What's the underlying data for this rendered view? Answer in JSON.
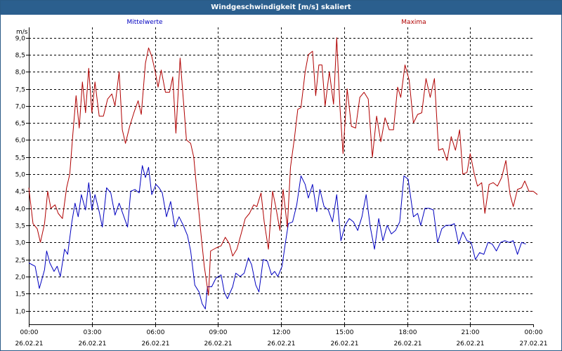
{
  "window": {
    "title": "Windgeschwindigkeit [m/s] skaliert"
  },
  "chart_data": {
    "type": "line",
    "title": "Windgeschwindigkeit [m/s] skaliert",
    "ylabel": "m/s",
    "ylim": [
      0.6,
      9.3
    ],
    "xlim": [
      0,
      24
    ],
    "grid": true,
    "y_ticks": [
      "1,0",
      "1,5",
      "2,0",
      "2,5",
      "3,0",
      "3,5",
      "4,0",
      "4,5",
      "5,0",
      "5,5",
      "6,0",
      "6,5",
      "7,0",
      "7,5",
      "8,0",
      "8,5",
      "9,0"
    ],
    "x_ticks": [
      {
        "time": "00:00",
        "date": "26.02.21"
      },
      {
        "time": "03:00",
        "date": "26.02.21"
      },
      {
        "time": "06:00",
        "date": "26.02.21"
      },
      {
        "time": "09:00",
        "date": "26.02.21"
      },
      {
        "time": "12:00",
        "date": "26.02.21"
      },
      {
        "time": "15:00",
        "date": "26.02.21"
      },
      {
        "time": "18:00",
        "date": "26.02.21"
      },
      {
        "time": "21:00",
        "date": "26.02.21"
      },
      {
        "time": "00:00",
        "date": "27.02.21"
      }
    ],
    "series": [
      {
        "name": "Mittelwerte",
        "color": "#0000c0",
        "points": [
          [
            0.0,
            2.4
          ],
          [
            0.3,
            2.3
          ],
          [
            0.5,
            1.65
          ],
          [
            0.75,
            2.2
          ],
          [
            0.85,
            2.75
          ],
          [
            1.0,
            2.4
          ],
          [
            1.2,
            2.15
          ],
          [
            1.35,
            2.3
          ],
          [
            1.5,
            2.0
          ],
          [
            1.7,
            2.8
          ],
          [
            1.85,
            2.65
          ],
          [
            2.05,
            3.6
          ],
          [
            2.2,
            4.15
          ],
          [
            2.35,
            3.75
          ],
          [
            2.5,
            4.4
          ],
          [
            2.7,
            3.95
          ],
          [
            2.85,
            4.75
          ],
          [
            3.0,
            3.95
          ],
          [
            3.15,
            4.4
          ],
          [
            3.35,
            3.9
          ],
          [
            3.5,
            3.45
          ],
          [
            3.7,
            4.6
          ],
          [
            3.9,
            4.45
          ],
          [
            4.1,
            3.8
          ],
          [
            4.3,
            4.15
          ],
          [
            4.5,
            3.8
          ],
          [
            4.7,
            3.45
          ],
          [
            4.85,
            4.5
          ],
          [
            5.05,
            4.55
          ],
          [
            5.25,
            4.45
          ],
          [
            5.4,
            5.25
          ],
          [
            5.55,
            4.9
          ],
          [
            5.7,
            5.2
          ],
          [
            5.85,
            4.4
          ],
          [
            6.05,
            4.7
          ],
          [
            6.2,
            4.6
          ],
          [
            6.35,
            4.45
          ],
          [
            6.55,
            3.75
          ],
          [
            6.75,
            4.2
          ],
          [
            6.95,
            3.45
          ],
          [
            7.15,
            3.75
          ],
          [
            7.35,
            3.5
          ],
          [
            7.55,
            3.2
          ],
          [
            7.7,
            2.75
          ],
          [
            7.9,
            1.75
          ],
          [
            8.1,
            1.55
          ],
          [
            8.25,
            1.2
          ],
          [
            8.4,
            1.05
          ],
          [
            8.5,
            1.7
          ],
          [
            8.7,
            1.7
          ],
          [
            8.9,
            1.95
          ],
          [
            9.15,
            2.05
          ],
          [
            9.3,
            1.55
          ],
          [
            9.45,
            1.35
          ],
          [
            9.7,
            1.7
          ],
          [
            9.85,
            2.1
          ],
          [
            10.05,
            2.0
          ],
          [
            10.25,
            2.1
          ],
          [
            10.45,
            2.55
          ],
          [
            10.6,
            2.35
          ],
          [
            10.8,
            1.75
          ],
          [
            10.95,
            1.55
          ],
          [
            11.15,
            2.5
          ],
          [
            11.35,
            2.45
          ],
          [
            11.55,
            2.05
          ],
          [
            11.7,
            2.15
          ],
          [
            11.85,
            2.0
          ],
          [
            12.05,
            2.3
          ],
          [
            12.2,
            2.95
          ],
          [
            12.35,
            3.55
          ],
          [
            12.55,
            3.6
          ],
          [
            12.75,
            4.1
          ],
          [
            12.95,
            4.95
          ],
          [
            13.15,
            4.7
          ],
          [
            13.3,
            4.3
          ],
          [
            13.5,
            4.7
          ],
          [
            13.7,
            3.9
          ],
          [
            13.85,
            4.55
          ],
          [
            14.05,
            4.05
          ],
          [
            14.25,
            3.95
          ],
          [
            14.45,
            3.6
          ],
          [
            14.65,
            4.4
          ],
          [
            14.85,
            3.05
          ],
          [
            15.05,
            3.5
          ],
          [
            15.25,
            3.7
          ],
          [
            15.45,
            3.6
          ],
          [
            15.65,
            3.35
          ],
          [
            15.85,
            3.75
          ],
          [
            16.05,
            4.4
          ],
          [
            16.25,
            3.45
          ],
          [
            16.45,
            2.8
          ],
          [
            16.65,
            3.7
          ],
          [
            16.85,
            3.05
          ],
          [
            17.05,
            3.5
          ],
          [
            17.25,
            3.25
          ],
          [
            17.45,
            3.35
          ],
          [
            17.65,
            3.6
          ],
          [
            17.85,
            4.95
          ],
          [
            18.05,
            4.85
          ],
          [
            18.3,
            3.75
          ],
          [
            18.5,
            3.85
          ],
          [
            18.65,
            3.5
          ],
          [
            18.85,
            4.0
          ],
          [
            19.05,
            4.0
          ],
          [
            19.25,
            3.95
          ],
          [
            19.45,
            3.0
          ],
          [
            19.65,
            3.4
          ],
          [
            19.85,
            3.5
          ],
          [
            20.05,
            3.5
          ],
          [
            20.25,
            3.55
          ],
          [
            20.45,
            2.95
          ],
          [
            20.65,
            3.3
          ],
          [
            20.85,
            3.05
          ],
          [
            21.05,
            3.0
          ],
          [
            21.25,
            2.5
          ],
          [
            21.45,
            2.7
          ],
          [
            21.65,
            2.65
          ],
          [
            21.85,
            3.0
          ],
          [
            22.05,
            2.95
          ],
          [
            22.25,
            2.75
          ],
          [
            22.45,
            3.0
          ],
          [
            22.65,
            3.05
          ],
          [
            22.85,
            3.0
          ],
          [
            23.05,
            3.05
          ],
          [
            23.25,
            2.65
          ],
          [
            23.45,
            3.0
          ],
          [
            23.65,
            2.95
          ]
        ]
      },
      {
        "name": "Maxima",
        "color": "#b00000",
        "points": [
          [
            0.0,
            4.6
          ],
          [
            0.2,
            3.55
          ],
          [
            0.4,
            3.4
          ],
          [
            0.55,
            3.0
          ],
          [
            0.75,
            3.55
          ],
          [
            0.9,
            4.5
          ],
          [
            1.05,
            4.0
          ],
          [
            1.25,
            4.1
          ],
          [
            1.4,
            3.85
          ],
          [
            1.6,
            3.7
          ],
          [
            1.8,
            4.6
          ],
          [
            1.95,
            5.0
          ],
          [
            2.1,
            6.2
          ],
          [
            2.25,
            7.3
          ],
          [
            2.4,
            6.35
          ],
          [
            2.55,
            7.7
          ],
          [
            2.7,
            6.8
          ],
          [
            2.85,
            8.1
          ],
          [
            3.0,
            6.8
          ],
          [
            3.15,
            7.7
          ],
          [
            3.35,
            6.7
          ],
          [
            3.55,
            6.7
          ],
          [
            3.75,
            7.2
          ],
          [
            3.95,
            7.35
          ],
          [
            4.1,
            7.0
          ],
          [
            4.3,
            8.0
          ],
          [
            4.45,
            6.3
          ],
          [
            4.6,
            5.9
          ],
          [
            4.8,
            6.4
          ],
          [
            5.0,
            6.8
          ],
          [
            5.2,
            7.15
          ],
          [
            5.35,
            6.75
          ],
          [
            5.55,
            8.25
          ],
          [
            5.7,
            8.7
          ],
          [
            5.85,
            8.45
          ],
          [
            6.0,
            8.05
          ],
          [
            6.15,
            7.55
          ],
          [
            6.3,
            8.05
          ],
          [
            6.5,
            7.4
          ],
          [
            6.7,
            7.4
          ],
          [
            6.85,
            7.85
          ],
          [
            7.0,
            6.2
          ],
          [
            7.2,
            8.4
          ],
          [
            7.35,
            7.2
          ],
          [
            7.5,
            6.0
          ],
          [
            7.7,
            5.9
          ],
          [
            7.85,
            5.5
          ],
          [
            8.0,
            4.5
          ],
          [
            8.2,
            3.2
          ],
          [
            8.35,
            2.3
          ],
          [
            8.55,
            1.45
          ],
          [
            8.65,
            2.75
          ],
          [
            8.8,
            2.8
          ],
          [
            8.95,
            2.85
          ],
          [
            9.15,
            2.9
          ],
          [
            9.35,
            3.15
          ],
          [
            9.55,
            2.95
          ],
          [
            9.7,
            2.6
          ],
          [
            9.9,
            2.8
          ],
          [
            10.1,
            3.25
          ],
          [
            10.3,
            3.7
          ],
          [
            10.5,
            3.85
          ],
          [
            10.7,
            4.1
          ],
          [
            10.85,
            4.05
          ],
          [
            11.05,
            4.45
          ],
          [
            11.2,
            3.6
          ],
          [
            11.4,
            2.8
          ],
          [
            11.6,
            4.5
          ],
          [
            11.75,
            4.05
          ],
          [
            11.95,
            3.35
          ],
          [
            12.1,
            4.55
          ],
          [
            12.3,
            3.45
          ],
          [
            12.45,
            5.2
          ],
          [
            12.65,
            6.1
          ],
          [
            12.8,
            6.9
          ],
          [
            12.95,
            6.95
          ],
          [
            13.15,
            8.0
          ],
          [
            13.3,
            8.5
          ],
          [
            13.5,
            8.6
          ],
          [
            13.65,
            7.3
          ],
          [
            13.8,
            8.2
          ],
          [
            13.95,
            8.2
          ],
          [
            14.1,
            7.0
          ],
          [
            14.3,
            8.0
          ],
          [
            14.5,
            7.05
          ],
          [
            14.65,
            9.0
          ],
          [
            14.8,
            7.0
          ],
          [
            14.95,
            5.6
          ],
          [
            15.15,
            7.5
          ],
          [
            15.35,
            6.4
          ],
          [
            15.55,
            6.35
          ],
          [
            15.75,
            7.25
          ],
          [
            15.95,
            7.4
          ],
          [
            16.15,
            7.2
          ],
          [
            16.35,
            5.5
          ],
          [
            16.55,
            6.7
          ],
          [
            16.75,
            5.95
          ],
          [
            16.95,
            6.65
          ],
          [
            17.15,
            6.3
          ],
          [
            17.35,
            6.3
          ],
          [
            17.55,
            7.55
          ],
          [
            17.7,
            7.25
          ],
          [
            17.9,
            8.2
          ],
          [
            18.1,
            7.75
          ],
          [
            18.3,
            6.5
          ],
          [
            18.5,
            6.75
          ],
          [
            18.7,
            6.8
          ],
          [
            18.9,
            7.8
          ],
          [
            19.1,
            7.25
          ],
          [
            19.3,
            7.8
          ],
          [
            19.5,
            5.7
          ],
          [
            19.7,
            5.75
          ],
          [
            19.9,
            5.4
          ],
          [
            20.1,
            6.1
          ],
          [
            20.3,
            5.7
          ],
          [
            20.5,
            6.3
          ],
          [
            20.65,
            5.0
          ],
          [
            20.85,
            5.05
          ],
          [
            21.0,
            5.6
          ],
          [
            21.2,
            5.0
          ],
          [
            21.35,
            4.65
          ],
          [
            21.55,
            4.75
          ],
          [
            21.7,
            3.85
          ],
          [
            21.9,
            4.7
          ],
          [
            22.1,
            4.75
          ],
          [
            22.3,
            4.65
          ],
          [
            22.5,
            4.9
          ],
          [
            22.7,
            5.4
          ],
          [
            22.9,
            4.4
          ],
          [
            23.05,
            4.05
          ],
          [
            23.25,
            4.55
          ],
          [
            23.45,
            4.6
          ],
          [
            23.6,
            4.8
          ],
          [
            23.8,
            4.5
          ],
          [
            24.0,
            4.5
          ],
          [
            24.2,
            4.4
          ]
        ]
      }
    ]
  }
}
